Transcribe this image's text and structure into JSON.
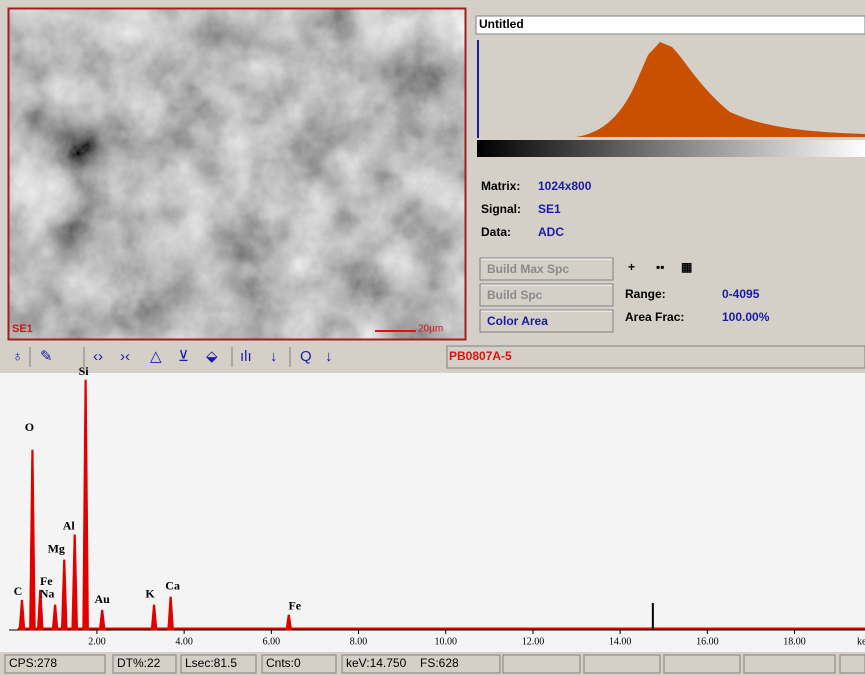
{
  "image_panel": {
    "signal_label": "SE1",
    "scale_label": "20µm"
  },
  "info_panel": {
    "title": "Untitled",
    "matrix_label": "Matrix:",
    "matrix_value": "1024x800",
    "signal_label": "Signal:",
    "signal_value": "SE1",
    "data_label": "Data:",
    "data_value": "ADC",
    "buttons": [
      "Build Max Spc",
      "Build Spc",
      "Color Area"
    ],
    "icons": [
      "+",
      "▪▪",
      "▦"
    ],
    "range_label": "Range:",
    "range_value": "0-4095",
    "area_label": "Area Frac:",
    "area_value": "100.00%"
  },
  "toolbar": {
    "icons": [
      "♁",
      "✎",
      "‹›",
      "›‹",
      "△",
      "⊻",
      "⬙",
      "ılı",
      "↓",
      "Q",
      "↓"
    ],
    "spectrum_name": "PB0807A-5"
  },
  "spectrum": {
    "xlim": [
      0,
      19.8
    ],
    "ylim": [
      0,
      628
    ],
    "xticks": [
      {
        "value": 2,
        "label": "2.00"
      },
      {
        "value": 4,
        "label": "4.00"
      },
      {
        "value": 6,
        "label": "6.00"
      },
      {
        "value": 8,
        "label": "8.00"
      },
      {
        "value": 10,
        "label": "10.00"
      },
      {
        "value": 12,
        "label": "12.00"
      },
      {
        "value": 14,
        "label": "14.00"
      },
      {
        "value": 16,
        "label": "16.00"
      },
      {
        "value": 18,
        "label": "18.00"
      }
    ],
    "x_unit": "keV",
    "peaks": [
      {
        "label": "C",
        "kev": 0.28,
        "height": 75
      },
      {
        "label": "O",
        "kev": 0.52,
        "height": 452
      },
      {
        "label": "Fe",
        "kev": 0.7,
        "height": 100
      },
      {
        "label": "Na",
        "kev": 1.04,
        "height": 63
      },
      {
        "label": "Mg",
        "kev": 1.25,
        "height": 176
      },
      {
        "label": "Al",
        "kev": 1.49,
        "height": 239
      },
      {
        "label": "Si",
        "kev": 1.74,
        "height": 628
      },
      {
        "label": "Au",
        "kev": 2.12,
        "height": 50
      },
      {
        "label": "K",
        "kev": 3.31,
        "height": 63
      },
      {
        "label": "Ca",
        "kev": 3.69,
        "height": 83
      },
      {
        "label": "Fe",
        "kev": 6.4,
        "height": 38
      }
    ],
    "marker_kev": 14.75,
    "color": "#e00000"
  },
  "status_bar": [
    "CPS:278",
    "DT%:22",
    "Lsec:81.5",
    "Cnts:0",
    "keV:14.750",
    "FS:628"
  ]
}
